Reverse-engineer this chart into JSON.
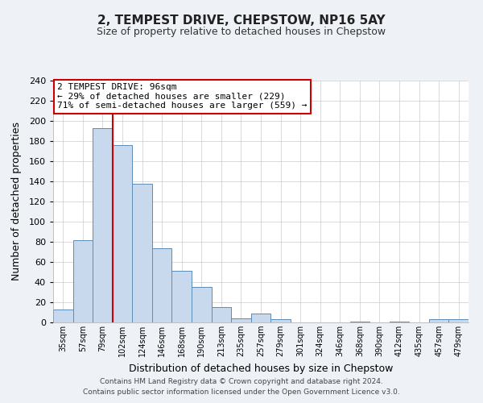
{
  "title": "2, TEMPEST DRIVE, CHEPSTOW, NP16 5AY",
  "subtitle": "Size of property relative to detached houses in Chepstow",
  "xlabel": "Distribution of detached houses by size in Chepstow",
  "ylabel": "Number of detached properties",
  "bar_labels": [
    "35sqm",
    "57sqm",
    "79sqm",
    "102sqm",
    "124sqm",
    "146sqm",
    "168sqm",
    "190sqm",
    "213sqm",
    "235sqm",
    "257sqm",
    "279sqm",
    "301sqm",
    "324sqm",
    "346sqm",
    "368sqm",
    "390sqm",
    "412sqm",
    "435sqm",
    "457sqm",
    "479sqm"
  ],
  "bar_values": [
    13,
    82,
    193,
    176,
    138,
    74,
    51,
    35,
    15,
    4,
    9,
    3,
    0,
    0,
    0,
    1,
    0,
    1,
    0,
    3,
    3
  ],
  "bar_color": "#c9d9ed",
  "bar_edge_color": "#5b8db8",
  "vline_x_idx": 2,
  "vline_color": "#cc0000",
  "annotation_title": "2 TEMPEST DRIVE: 96sqm",
  "annotation_line1": "← 29% of detached houses are smaller (229)",
  "annotation_line2": "71% of semi-detached houses are larger (559) →",
  "annotation_box_color": "#ffffff",
  "annotation_box_edge": "#cc0000",
  "ylim": [
    0,
    240
  ],
  "yticks": [
    0,
    20,
    40,
    60,
    80,
    100,
    120,
    140,
    160,
    180,
    200,
    220,
    240
  ],
  "bg_color": "#eef2f7",
  "plot_bg_color": "#ffffff",
  "footer_line1": "Contains HM Land Registry data © Crown copyright and database right 2024.",
  "footer_line2": "Contains public sector information licensed under the Open Government Licence v3.0."
}
